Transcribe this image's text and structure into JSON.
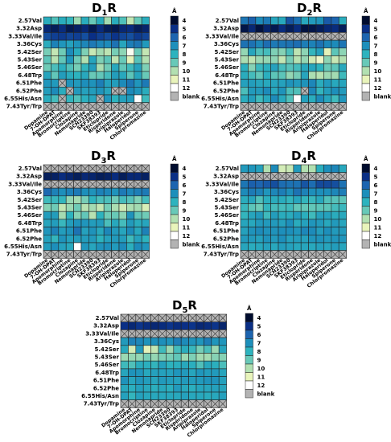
{
  "figure": {
    "colorbar": {
      "unit": "Å",
      "ticks": [
        "4",
        "5",
        "6",
        "7",
        "8",
        "9",
        "10",
        "11",
        "12"
      ],
      "colors": [
        "#000c2e",
        "#0a2f86",
        "#1d65b0",
        "#1d8fbb",
        "#2db3be",
        "#68c9b8",
        "#b2e0b1",
        "#e9f4bb",
        "#ffffff"
      ],
      "blank_label": "blank",
      "blank_color": "#b3b3b3",
      "scale_min": 4,
      "scale_max": 12
    }
  },
  "chart_data": [
    {
      "type": "heatmap",
      "title": "D",
      "title_sub": "1",
      "title_suffix": "R",
      "rows": [
        "2.57Val",
        "3.32Asp",
        "3.33Val/Ile",
        "3.36Cys",
        "5.42Ser",
        "5.43Ser",
        "5.46Ser",
        "6.48Trp",
        "6.51Phe",
        "6.52Phe",
        "6.55His/Asn",
        "7.43Tyr/Trp"
      ],
      "columns": [
        "Dopamine",
        "7-OH-DPAT",
        "Apomorphine",
        "Bromocriptine",
        "Clozapine",
        "Nemonapride",
        "SCH23390",
        "SKF38393",
        "Eticlopride",
        "Risperidone",
        "Aripiprazole",
        "Haloperidol",
        "Spiperone",
        "Chlorpromazine"
      ],
      "values": [
        [
          7.8,
          8.6,
          7.8,
          8.1,
          9.7,
          7.8,
          9.0,
          7.8,
          9.8,
          7.8,
          8.6,
          10.3,
          9.0,
          7.8
        ],
        [
          4.8,
          4.5,
          4.9,
          4.4,
          4.6,
          4.8,
          4.4,
          4.9,
          4.5,
          4.4,
          4.8,
          4.9,
          4.5,
          4.7
        ],
        [
          5.6,
          5.3,
          5.2,
          5.4,
          5.3,
          5.6,
          5.0,
          5.3,
          5.5,
          5.1,
          5.4,
          5.6,
          5.2,
          5.4
        ],
        [
          7.8,
          6.7,
          7.2,
          7.5,
          7.1,
          6.8,
          6.5,
          6.8,
          6.9,
          6.3,
          7.6,
          6.6,
          6.4,
          7.3
        ],
        [
          9.2,
          10.3,
          9.1,
          6.9,
          7.8,
          9.3,
          10.4,
          9.8,
          10.2,
          9.2,
          9.5,
          11.8,
          9.0,
          10.3
        ],
        [
          8.8,
          10.1,
          8.9,
          7.2,
          9.1,
          10.0,
          7.6,
          9.3,
          8.8,
          10.2,
          9.0,
          10.9,
          8.7,
          10.0
        ],
        [
          9.1,
          8.5,
          7.9,
          8.6,
          9.2,
          8.1,
          7.4,
          9.9,
          9.1,
          7.7,
          8.9,
          8.3,
          7.5,
          9.3
        ],
        [
          7.6,
          8.9,
          7.4,
          7.8,
          8.0,
          7.7,
          9.0,
          8.9,
          8.4,
          7.4,
          7.7,
          8.8,
          7.6,
          9.0
        ],
        [
          7.2,
          7.3,
          null,
          7.1,
          7.3,
          7.0,
          7.1,
          6.6,
          7.5,
          7.4,
          6.9,
          6.4,
          7.2,
          6.5
        ],
        [
          7.4,
          6.9,
          7.8,
          null,
          7.3,
          7.5,
          7.4,
          7.1,
          7.6,
          null,
          null,
          6.9,
          7.2,
          7.8
        ],
        [
          7.8,
          8.4,
          null,
          8.1,
          8.6,
          7.9,
          7.6,
          null,
          7.2,
          8.0,
          7.5,
          7.4,
          12.0,
          8.3
        ],
        [
          null,
          null,
          null,
          null,
          null,
          null,
          null,
          null,
          null,
          null,
          null,
          null,
          null,
          null
        ]
      ]
    },
    {
      "type": "heatmap",
      "title": "D",
      "title_sub": "2",
      "title_suffix": "R",
      "rows": [
        "2.57Val",
        "3.32Asp",
        "3.33Val/Ile",
        "3.36Cys",
        "5.42Ser",
        "5.43Ser",
        "5.46Ser",
        "6.48Trp",
        "6.51Phe",
        "6.52Phe",
        "6.55His/Asn",
        "7.43Tyr/Trp"
      ],
      "columns": [
        "Dopamine",
        "7-OH-DPAT",
        "Apomorphine",
        "Bromocriptine",
        "Clozapine",
        "Nemonapride",
        "SCH23390",
        "SKF38393",
        "Eticlopride",
        "Risperidone",
        "Aripiprazole",
        "Haloperidol",
        "Spiperone",
        "Chlorpromazine"
      ],
      "values": [
        [
          6.4,
          5.9,
          6.9,
          6.5,
          7.6,
          7.7,
          5.7,
          6.3,
          7.7,
          7.3,
          7.1,
          5.8,
          6.0,
          7.8
        ],
        [
          4.3,
          4.8,
          4.2,
          4.7,
          4.4,
          4.9,
          4.5,
          4.9,
          4.2,
          4.3,
          4.5,
          4.8,
          4.9,
          4.5
        ],
        [
          null,
          null,
          null,
          null,
          null,
          null,
          null,
          null,
          null,
          null,
          null,
          null,
          null,
          null
        ],
        [
          6.3,
          6.3,
          6.8,
          6.2,
          6.5,
          6.4,
          6.3,
          6.2,
          6.6,
          6.7,
          6.3,
          6.8,
          6.9,
          6.4
        ],
        [
          9.6,
          7.6,
          8.6,
          8.4,
          9.3,
          9.4,
          8.5,
          10.2,
          9.5,
          8.1,
          7.5,
          10.9,
          8.8,
          9.5
        ],
        [
          9.9,
          10.2,
          9.7,
          9.6,
          9.5,
          10.3,
          9.2,
          10.1,
          9.6,
          10.5,
          11.2,
          9.5,
          10.4,
          10.0
        ],
        [
          7.9,
          9.4,
          8.2,
          7.9,
          7.5,
          8.4,
          8.7,
          8.4,
          7.7,
          7.6,
          8.0,
          9.0,
          8.8,
          7.7
        ],
        [
          7.8,
          8.4,
          8.9,
          7.9,
          8.8,
          8.8,
          9.6,
          9.2,
          7.6,
          9.9,
          10.1,
          9.7,
          9.8,
          8.3
        ],
        [
          7.5,
          7.4,
          7.6,
          7.7,
          7.6,
          7.5,
          7.1,
          7.3,
          7.1,
          6.8,
          7.8,
          7.3,
          7.7,
          7.6
        ],
        [
          8.5,
          7.3,
          7.3,
          6.9,
          7.7,
          7.1,
          8.5,
          8.6,
          null,
          6.8,
          8.1,
          7.4,
          7.0,
          7.3
        ],
        [
          7.8,
          7.4,
          8.3,
          7.7,
          6.9,
          7.7,
          8.6,
          12.0,
          7.5,
          7.8,
          6.9,
          7.6,
          8.3,
          7.2
        ],
        [
          null,
          null,
          null,
          null,
          null,
          null,
          null,
          null,
          null,
          null,
          null,
          null,
          null,
          null
        ]
      ]
    },
    {
      "type": "heatmap",
      "title": "D",
      "title_sub": "3",
      "title_suffix": "R",
      "rows": [
        "2.57Val",
        "3.32Asp",
        "3.33Val/Ile",
        "3.36Cys",
        "5.42Ser",
        "5.43Ser",
        "5.46Ser",
        "6.48Trp",
        "6.51Phe",
        "6.52Phe",
        "6.55His/Asn",
        "7.43Tyr/Trp"
      ],
      "columns": [
        "Dopamine",
        "7-OH-DPAT",
        "Apomorphine",
        "Bromocriptine",
        "Clozapine",
        "Nemonapride",
        "SCH23390",
        "SKF38393",
        "Eticlopride",
        "Risperidone",
        "Aripiprazole",
        "Haloperidol",
        "Spiperone",
        "Chlorpromazine"
      ],
      "values": [
        [
          null,
          null,
          null,
          null,
          null,
          null,
          null,
          null,
          null,
          null,
          null,
          null,
          null,
          null
        ],
        [
          4.5,
          4.6,
          4.9,
          4.7,
          4.5,
          4.8,
          4.7,
          4.5,
          4.6,
          4.9,
          4.5,
          4.8,
          4.8,
          4.6
        ],
        [
          null,
          null,
          null,
          null,
          null,
          null,
          null,
          null,
          null,
          null,
          null,
          null,
          null,
          null
        ],
        [
          6.1,
          6.7,
          7.0,
          6.7,
          6.5,
          7.0,
          7.1,
          6.7,
          6.8,
          7.1,
          6.5,
          6.8,
          6.6,
          6.5
        ],
        [
          8.3,
          8.2,
          8.1,
          9.6,
          9.8,
          9.2,
          8.0,
          8.5,
          8.5,
          9.1,
          8.4,
          8.7,
          9.3,
          8.4
        ],
        [
          9.4,
          9.1,
          10.3,
          9.7,
          9.1,
          10.1,
          9.8,
          10.3,
          9.2,
          9.9,
          10.5,
          9.9,
          9.8,
          10.7
        ],
        [
          7.4,
          7.4,
          9.8,
          8.0,
          9.4,
          8.9,
          10.1,
          8.0,
          9.1,
          9.0,
          9.5,
          7.1,
          8.9,
          9.1
        ],
        [
          7.6,
          7.4,
          8.2,
          7.4,
          7.1,
          7.2,
          7.4,
          7.3,
          8.5,
          7.7,
          8.4,
          7.3,
          7.8,
          7.6
        ],
        [
          7.2,
          6.7,
          7.4,
          7.1,
          6.3,
          7.5,
          7.1,
          7.7,
          6.8,
          7.3,
          7.6,
          6.9,
          7.7,
          6.7
        ],
        [
          7.5,
          8.1,
          7.1,
          7.5,
          7.4,
          7.4,
          7.3,
          8.0,
          7.5,
          7.3,
          7.4,
          8.3,
          7.5,
          8.0
        ],
        [
          7.4,
          7.0,
          7.5,
          7.7,
          12.0,
          7.2,
          7.6,
          7.1,
          7.0,
          7.3,
          6.9,
          7.9,
          6.9,
          7.2
        ],
        [
          null,
          null,
          null,
          null,
          null,
          null,
          null,
          null,
          null,
          null,
          null,
          null,
          null,
          null
        ]
      ]
    },
    {
      "type": "heatmap",
      "title": "D",
      "title_sub": "4",
      "title_suffix": "R",
      "rows": [
        "2.57Val",
        "3.32Asp",
        "3.33Val/Ile",
        "3.36Cys",
        "5.42Ser",
        "5.43Ser",
        "5.46Ser",
        "6.48Trp",
        "6.51Phe",
        "6.52Phe",
        "6.55His/Asn",
        "7.43Tyr/Trp"
      ],
      "columns": [
        "Dopamine",
        "7-OH-DPAT",
        "Apomorphine",
        "Bromocriptine",
        "Clozapine",
        "Nemonapride",
        "SCH23390",
        "SKF38393",
        "Eticlopride",
        "Risperidone",
        "Aripiprazole",
        "Haloperidol",
        "Spiperone",
        "Chlorpromazine"
      ],
      "values": [
        [
          7.3,
          7.2,
          7.5,
          10.0,
          6.9,
          10.6,
          10.4,
          7.3,
          10.0,
          10.0,
          7.9,
          7.0,
          6.8,
          7.7
        ],
        [
          null,
          null,
          null,
          null,
          null,
          null,
          null,
          null,
          null,
          null,
          null,
          null,
          null,
          null
        ],
        [
          6.4,
          5.9,
          6.0,
          5.8,
          5.6,
          6.2,
          6.3,
          6.3,
          5.7,
          6.2,
          5.5,
          5.5,
          5.6,
          6.3
        ],
        [
          6.9,
          6.5,
          6.7,
          7.2,
          6.8,
          6.6,
          7.0,
          6.3,
          6.7,
          7.0,
          7.0,
          7.0,
          6.8,
          6.6
        ],
        [
          7.8,
          7.6,
          8.6,
          7.9,
          7.8,
          7.8,
          8.1,
          7.6,
          8.1,
          8.2,
          7.7,
          8.6,
          8.7,
          8.8
        ],
        [
          8.2,
          8.8,
          9.1,
          8.1,
          8.4,
          8.4,
          8.3,
          8.9,
          8.9,
          8.9,
          8.8,
          8.8,
          8.4,
          8.2
        ],
        [
          8.1,
          7.6,
          7.3,
          8.3,
          7.4,
          7.8,
          7.8,
          7.4,
          7.9,
          8.3,
          7.5,
          7.5,
          7.8,
          7.7
        ],
        [
          7.6,
          7.7,
          7.3,
          7.3,
          7.3,
          7.5,
          7.0,
          7.8,
          7.5,
          7.2,
          7.3,
          7.7,
          7.3,
          7.6
        ],
        [
          7.5,
          7.1,
          6.9,
          7.1,
          7.1,
          7.0,
          7.0,
          7.2,
          6.8,
          6.9,
          7.4,
          7.0,
          7.3,
          7.3
        ],
        [
          7.3,
          7.3,
          7.5,
          7.1,
          7.3,
          7.0,
          7.5,
          7.4,
          7.5,
          7.2,
          7.1,
          7.3,
          7.2,
          7.2
        ],
        [
          7.6,
          7.8,
          7.7,
          7.5,
          7.7,
          7.4,
          7.5,
          7.7,
          7.6,
          7.7,
          7.5,
          7.6,
          7.4,
          7.6
        ],
        [
          null,
          null,
          null,
          null,
          null,
          null,
          null,
          null,
          null,
          null,
          null,
          null,
          null,
          null
        ]
      ]
    },
    {
      "type": "heatmap",
      "title": "D",
      "title_sub": "5",
      "title_suffix": "R",
      "rows": [
        "2.57Val",
        "3.32Asp",
        "3.33Val/Ile",
        "3.36Cys",
        "5.42Ser",
        "5.43Ser",
        "5.46Ser",
        "6.48Trp",
        "6.51Phe",
        "6.52Phe",
        "6.55His/Asn",
        "7.43Tyr/Trp"
      ],
      "columns": [
        "Dopamine",
        "7-OH-DPAT",
        "Apomorphine",
        "Bromocriptine",
        "Clozapine",
        "Nemonapride",
        "SCH23390",
        "SKF38393",
        "Eticlopride",
        "Risperidone",
        "Aripiprazole",
        "Haloperidol",
        "Spiperone",
        "Chlorpromazine"
      ],
      "values": [
        [
          null,
          null,
          null,
          null,
          null,
          null,
          null,
          null,
          null,
          null,
          null,
          null,
          null,
          null
        ],
        [
          5.0,
          4.8,
          5.1,
          4.9,
          4.8,
          4.9,
          5.1,
          4.9,
          5.0,
          5.1,
          4.8,
          4.9,
          5.1,
          4.7
        ],
        [
          null,
          null,
          null,
          null,
          null,
          null,
          null,
          null,
          null,
          null,
          null,
          null,
          null,
          null
        ],
        [
          7.3,
          6.7,
          6.8,
          7.1,
          7.0,
          7.0,
          7.1,
          6.6,
          6.9,
          7.1,
          7.2,
          6.6,
          7.2,
          7.2
        ],
        [
          7.7,
          10.6,
          7.3,
          10.9,
          10.3,
          8.3,
          9.7,
          8.4,
          7.8,
          8.2,
          9.2,
          8.5,
          9.7,
          7.6
        ],
        [
          9.7,
          9.6,
          9.6,
          9.2,
          9.6,
          9.3,
          9.2,
          8.9,
          9.7,
          9.3,
          9.8,
          9.8,
          9.4,
          9.4
        ],
        [
          8.3,
          8.6,
          7.8,
          7.9,
          8.1,
          7.5,
          8.0,
          7.9,
          7.7,
          7.9,
          8.6,
          7.7,
          7.9,
          8.5
        ],
        [
          7.6,
          7.1,
          7.2,
          7.7,
          7.5,
          7.5,
          7.5,
          7.2,
          7.3,
          7.6,
          7.2,
          7.4,
          7.3,
          7.6
        ],
        [
          7.1,
          7.6,
          7.2,
          7.4,
          7.6,
          7.3,
          7.4,
          7.5,
          7.3,
          7.4,
          7.3,
          7.1,
          7.1,
          7.5
        ],
        [
          7.7,
          7.9,
          7.5,
          7.7,
          7.9,
          7.7,
          7.9,
          7.3,
          7.7,
          7.9,
          7.6,
          7.6,
          7.5,
          7.6
        ],
        [
          7.5,
          8.1,
          7.5,
          7.7,
          7.7,
          7.7,
          7.7,
          7.7,
          7.5,
          7.7,
          7.7,
          7.8,
          7.7,
          7.5
        ],
        [
          null,
          null,
          null,
          null,
          null,
          null,
          null,
          null,
          null,
          null,
          null,
          null,
          null,
          null
        ]
      ]
    }
  ]
}
